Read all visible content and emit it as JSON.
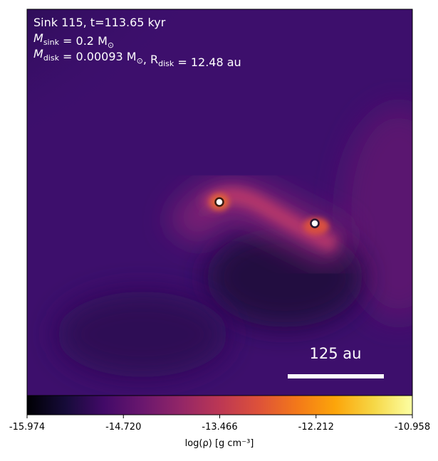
{
  "chart_data": {
    "type": "image",
    "annotations": [
      [
        {
          "text": "Sink 115, t=113.65 kyr"
        }
      ],
      [
        {
          "text": "M"
        },
        {
          "sub": "sink"
        },
        {
          "text": " = 0.2 M"
        },
        {
          "sub": "⊙"
        }
      ],
      [
        {
          "text": "M"
        },
        {
          "sub": "disk"
        },
        {
          "text": " = 0.00093 M"
        },
        {
          "sub": "⊙"
        },
        {
          "text": ", R"
        },
        {
          "sub": "disk"
        },
        {
          "text": " = 12.48 au"
        }
      ]
    ],
    "scale_bar_label": "125 au",
    "colorbar_label": "log(ρ) [g cm⁻³]",
    "colormap": "inferno",
    "clim": [
      -15.974,
      -10.958
    ],
    "cticks": [
      -15.974,
      {
        "value": -14.72,
        "label": "-14.720"
      },
      -13.466,
      -12.212,
      -10.958
    ]
  }
}
